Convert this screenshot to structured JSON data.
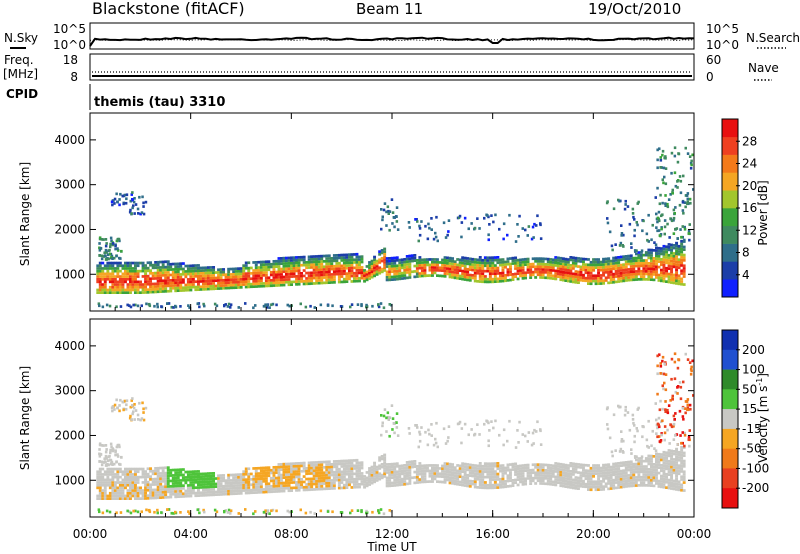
{
  "header": {
    "title": "Blackstone (fitACF)",
    "beam": "Beam 11",
    "date": "19/Oct/2010"
  },
  "noise_panel": {
    "left_label": "N.Sky",
    "right_label": "N.Search",
    "left_ticks": [
      "10^5",
      "10^0"
    ],
    "right_ticks": [
      "10^5",
      "10^0"
    ]
  },
  "freq_panel": {
    "left_label_top": "Freq.",
    "left_label_unit": "[MHz]",
    "right_label": "Nave",
    "left_ticks": [
      "18",
      "8"
    ],
    "right_ticks": [
      "60",
      "0"
    ]
  },
  "cpid_panel": {
    "label": "CPID",
    "text": "themis (tau) 3310"
  },
  "chart_data": [
    {
      "type": "heatmap",
      "quantity": "Power",
      "ylabel": "Slant Range [km]",
      "ylim": [
        180,
        4600
      ],
      "yticks": [
        1000,
        2000,
        3000,
        4000
      ],
      "colorbar_label": "Power [dB]",
      "colorbar_range": [
        0,
        32
      ],
      "colorbar_ticks": [
        "28",
        "24",
        "20",
        "16",
        "12",
        "8",
        "4"
      ],
      "colorbar_colors": [
        "#1020ff",
        "#1c3ea8",
        "#2f6e8a",
        "#3f8a5f",
        "#3aa43a",
        "#a2c62c",
        "#f5a623",
        "#f47a1a",
        "#ef4020",
        "#e81010"
      ],
      "features": [
        {
          "name": "main echo band (morning)",
          "t_start": 0.3,
          "t_end": 10.8,
          "range_low": 550,
          "range_high": 1300,
          "peak_power_db": 28
        },
        {
          "name": "main echo band (afternoon)",
          "t_start": 11.7,
          "t_end": 23.5,
          "range_low": 850,
          "range_high": 1700,
          "peak_power_db": 30
        },
        {
          "name": "upper echoes",
          "t_start": 0.3,
          "t_end": 2.0,
          "range_low": 2300,
          "range_high": 2800,
          "peak_power_db": 8
        },
        {
          "name": "late-day far echoes",
          "t_start": 21.5,
          "t_end": 24.0,
          "range_low": 2000,
          "range_high": 3800,
          "peak_power_db": 12
        }
      ]
    },
    {
      "type": "heatmap",
      "quantity": "Velocity",
      "ylabel": "Slant Range [km]",
      "xlabel": "Time UT",
      "xlim": [
        0,
        24
      ],
      "xticks": [
        "00:00",
        "04:00",
        "08:00",
        "12:00",
        "16:00",
        "20:00",
        "00:00"
      ],
      "ylim": [
        180,
        4600
      ],
      "yticks": [
        1000,
        2000,
        3000,
        4000
      ],
      "colorbar_label": "Velocity [m s^-1]",
      "colorbar_label_main": "Velocity",
      "colorbar_label_unit": "[m s",
      "colorbar_label_exp": "-1",
      "colorbar_label_close": "]",
      "colorbar_ticks": [
        "200",
        "100",
        "50",
        "15",
        "-15",
        "-50",
        "-100",
        "-200"
      ],
      "colorbar_colors": [
        "#1030b0",
        "#2050d0",
        "#2f8a2a",
        "#4ec43a",
        "#c8c8c4",
        "#f5a623",
        "#f07a1a",
        "#e84020",
        "#e81010"
      ],
      "features": [
        {
          "name": "ground scatter band",
          "t_start": 0.3,
          "t_end": 23.5,
          "velocity": 0,
          "color": "#c8c8c4"
        },
        {
          "name": "green patch",
          "t_start": 3.0,
          "t_end": 5.0,
          "range_low": 800,
          "range_high": 1300,
          "velocity": 30
        },
        {
          "name": "orange patch",
          "t_start": 6.0,
          "t_end": 9.5,
          "range_low": 800,
          "range_high": 1300,
          "velocity": -40
        },
        {
          "name": "red late echoes",
          "t_start": 22.8,
          "t_end": 24.0,
          "range_low": 2300,
          "range_high": 3600,
          "velocity": -200
        }
      ]
    }
  ]
}
